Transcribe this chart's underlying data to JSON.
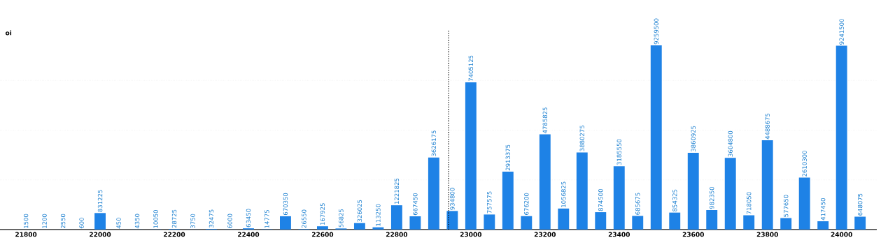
{
  "chart_data": {
    "type": "bar",
    "ylabel": "oi",
    "x": [
      21800,
      21850,
      21900,
      21950,
      22000,
      22050,
      22100,
      22150,
      22200,
      22250,
      22300,
      22350,
      22400,
      22450,
      22500,
      22550,
      22600,
      22650,
      22700,
      22750,
      22800,
      22850,
      22900,
      22950,
      23000,
      23050,
      23100,
      23150,
      23200,
      23250,
      23300,
      23350,
      23400,
      23450,
      23500,
      23550,
      23600,
      23650,
      23700,
      23750,
      23800,
      23850,
      23900,
      23950,
      24000,
      24050
    ],
    "values": [
      1500,
      1200,
      2550,
      600,
      831225,
      450,
      4350,
      10050,
      28725,
      3750,
      32475,
      6000,
      63450,
      14775,
      670350,
      26550,
      167925,
      56825,
      326025,
      113250,
      1221825,
      667450,
      3626175,
      934800,
      7405125,
      757575,
      2913375,
      676200,
      4785825,
      1056825,
      3880275,
      874500,
      3185550,
      685675,
      9259500,
      854325,
      3860925,
      982350,
      3604800,
      718050,
      4488675,
      577650,
      2610300,
      417450,
      9241500,
      648075
    ],
    "color": "#1e82e6",
    "data_labels": true,
    "xlim": [
      21730,
      24095
    ],
    "xticks": [
      21800,
      22000,
      22200,
      22400,
      22600,
      22800,
      23000,
      23200,
      23400,
      23600,
      23800,
      24000
    ],
    "ylim": [
      0,
      10000000
    ],
    "yticks": [
      {
        "value": 2500000,
        "label": null
      },
      {
        "value": 5000000,
        "label": null
      },
      {
        "value": 7500000,
        "label": null
      }
    ],
    "grid": "y",
    "tick_labels": "x",
    "ref_lines": [
      {
        "axis": "x",
        "value": 22940,
        "color": "#000000",
        "line_style": "dotted"
      }
    ]
  }
}
